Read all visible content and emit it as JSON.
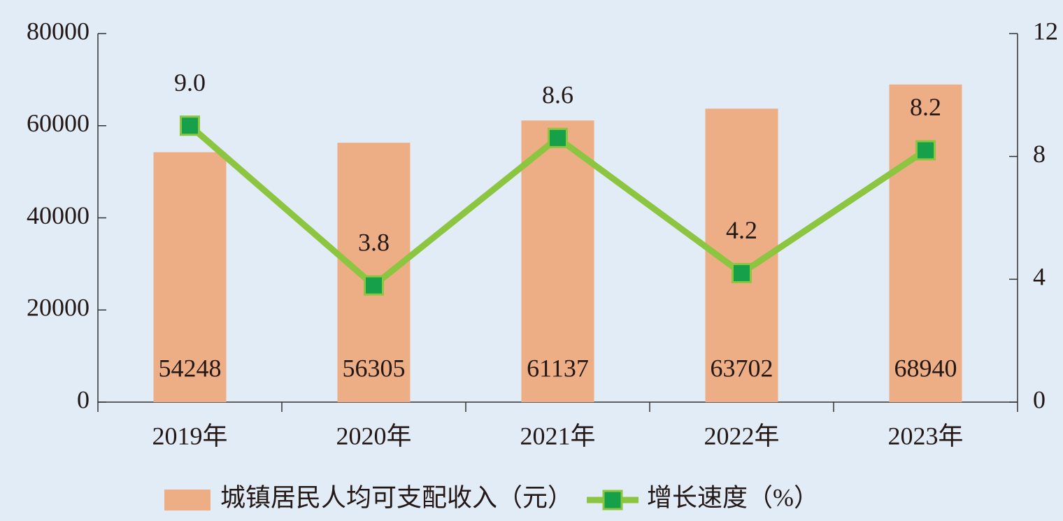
{
  "chart_data": {
    "type": "bar",
    "categories": [
      "2019年",
      "2020年",
      "2021年",
      "2022年",
      "2023年"
    ],
    "series": [
      {
        "name": "城镇居民人均可支配收入（元）",
        "color": "#edae85",
        "values": [
          54248,
          56305,
          61137,
          63702,
          68940
        ]
      },
      {
        "name": "增长速度（%）",
        "type": "line",
        "axis": "y2",
        "color": "#8cc540",
        "marker_color": "#16a04a",
        "values": [
          9.0,
          3.8,
          8.6,
          4.2,
          8.2
        ],
        "value_labels": [
          "9.0",
          "3.8",
          "8.6",
          "4.2",
          "8.2"
        ]
      }
    ],
    "ylim": [
      0,
      80000
    ],
    "yticks": [
      0,
      20000,
      40000,
      60000,
      80000
    ],
    "y2lim": [
      0,
      12
    ],
    "y2ticks": [
      0,
      4,
      8,
      12
    ],
    "legend": "bottom"
  }
}
